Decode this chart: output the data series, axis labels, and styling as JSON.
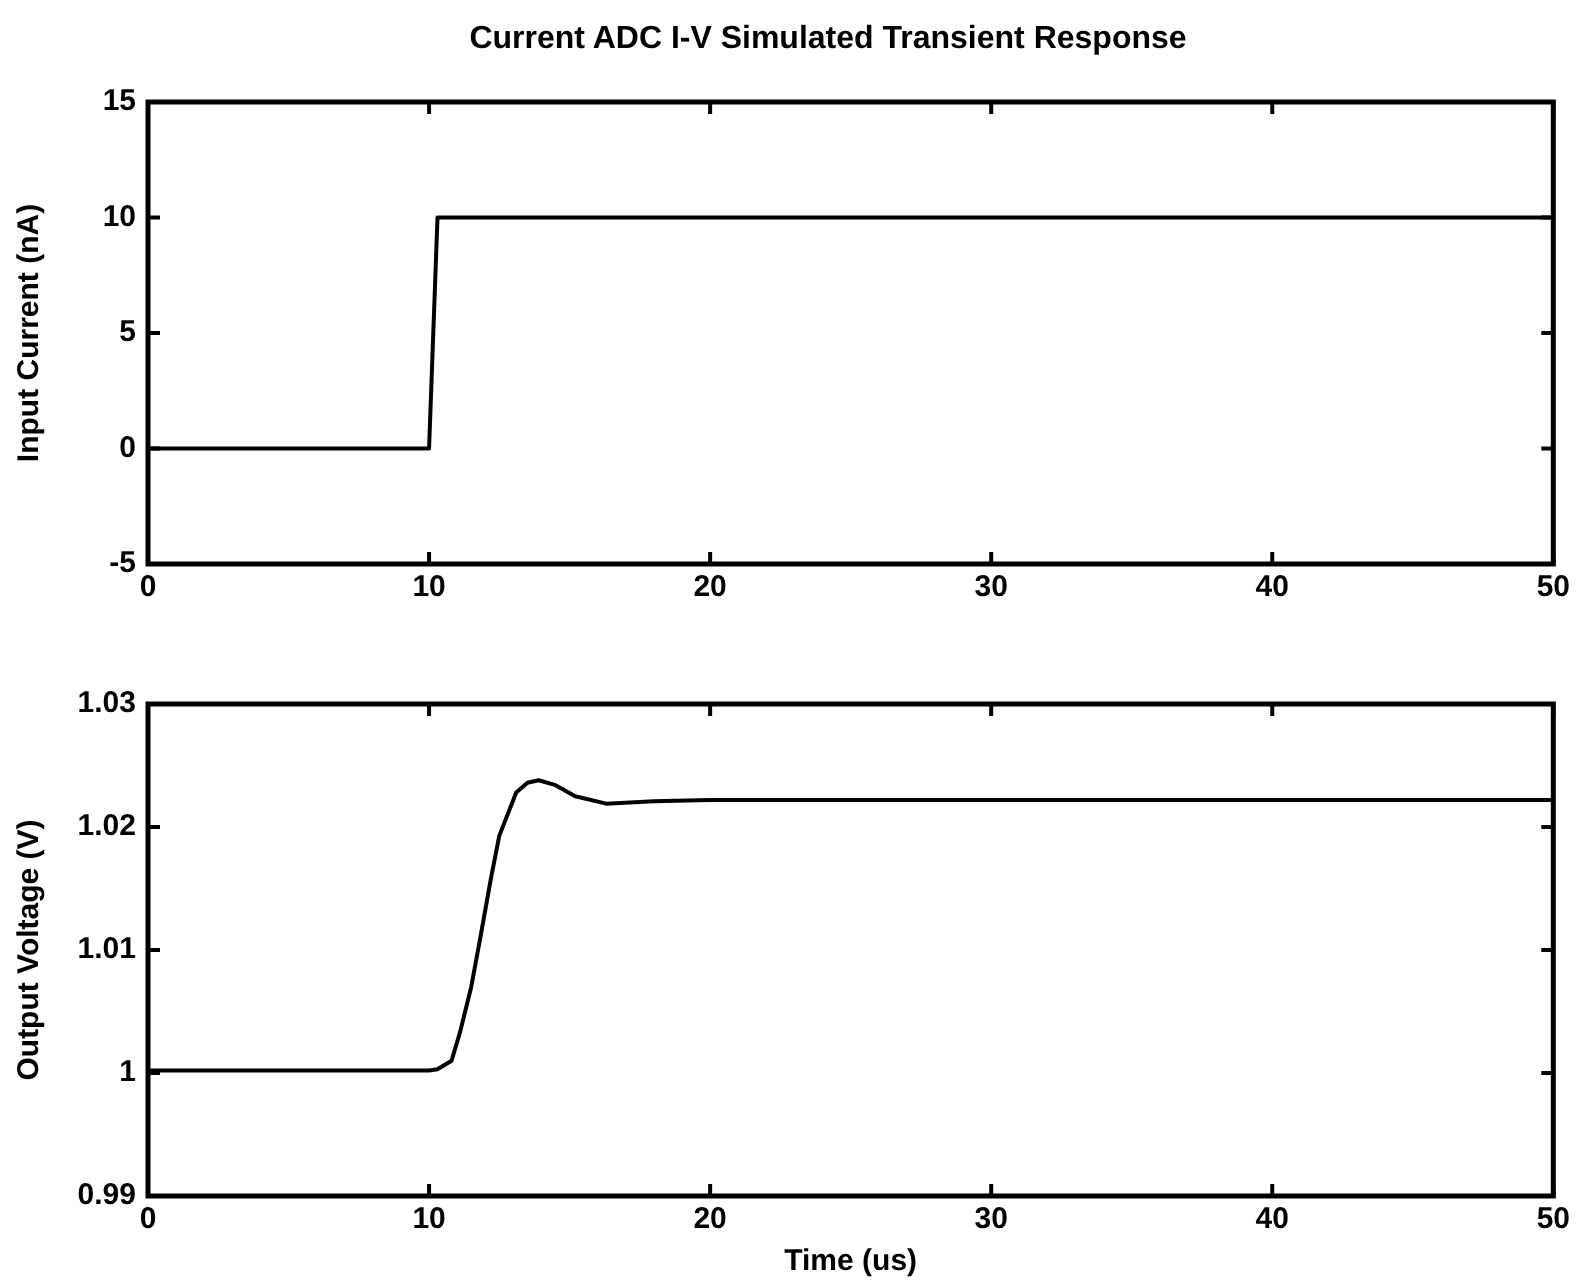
{
  "chart_data": [
    {
      "type": "line",
      "title": "Current ADC I-V Simulated Transient Response",
      "ylabel": "Input Current (nA)",
      "series": [
        {
          "color": "#000000",
          "x": [
            0,
            10,
            10.3,
            50
          ],
          "values": [
            0,
            0,
            10,
            10
          ]
        }
      ],
      "xlim": [
        0,
        50
      ],
      "xticks": [
        0,
        10,
        20,
        30,
        40,
        50
      ],
      "ylim": [
        -5,
        15
      ],
      "yticks": [
        -5,
        0,
        5,
        10,
        15
      ],
      "grid": false,
      "legend": false,
      "marker": "none",
      "line_style": "solid"
    },
    {
      "type": "line",
      "xlabel": "Time (us)",
      "ylabel": "Output Voltage (V)",
      "series": [
        {
          "color": "#000000",
          "x": [
            0,
            10,
            10.3,
            10.8,
            11.1,
            11.5,
            11.8,
            12.2,
            12.5,
            13.1,
            13.5,
            13.9,
            14.5,
            15.2,
            16.3,
            18,
            20,
            30,
            40,
            50
          ],
          "values": [
            1.0002,
            1.0002,
            1.0003,
            1.001,
            1.0033,
            1.007,
            1.0107,
            1.0158,
            1.0193,
            1.0228,
            1.0236,
            1.0238,
            1.0234,
            1.0225,
            1.0219,
            1.0221,
            1.0222,
            1.0222,
            1.0222,
            1.0222
          ]
        }
      ],
      "xlim": [
        0,
        50
      ],
      "xticks": [
        0,
        10,
        20,
        30,
        40,
        50
      ],
      "ylim": [
        0.99,
        1.03
      ],
      "yticks": [
        0.99,
        1,
        1.01,
        1.02,
        1.03
      ],
      "grid": false,
      "legend": false,
      "marker": "none",
      "line_style": "solid"
    }
  ]
}
